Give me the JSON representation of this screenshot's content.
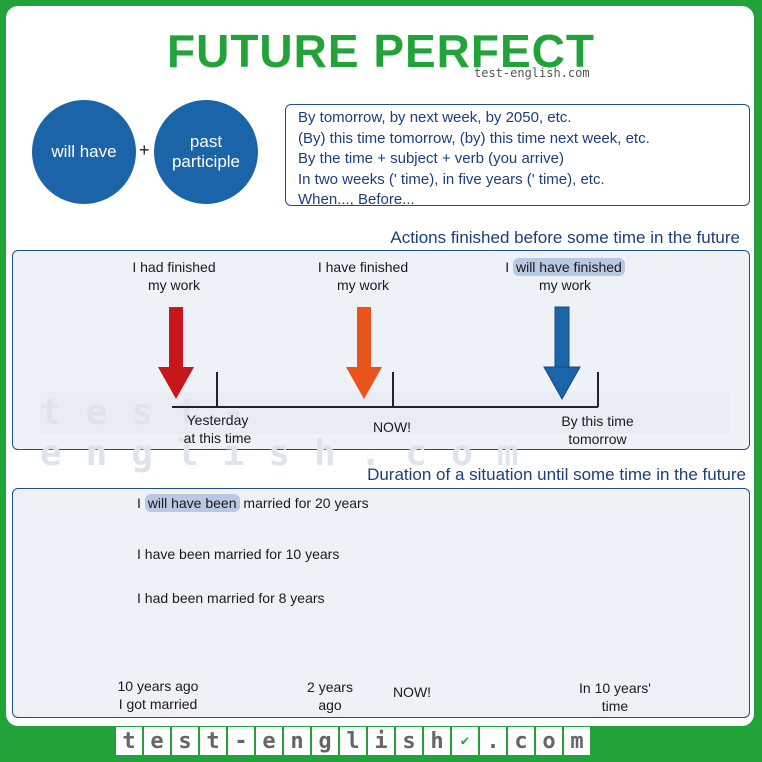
{
  "title": "FUTURE PERFECT",
  "logo": "test-english.com",
  "formula": {
    "part1": "will have",
    "plus": "+",
    "part2_line1": "past",
    "part2_line2": "participle"
  },
  "time_expressions": [
    "By tomorrow, by next week, by 2050, etc.",
    "(By) this time tomorrow, (by) this time next week, etc.",
    "By the time + subject + verb (you arrive)",
    "In two weeks (' time), in five years (' time), etc.",
    "When..., Before..."
  ],
  "section1": {
    "heading": "Actions finished before some time in the future",
    "example1_line1": "I had finished",
    "example1_line2": "my work",
    "example2_line1": "I have finished",
    "example2_line2": "my work",
    "example3_subject": "I",
    "example3_verb": "will have finished",
    "example3_line2": "my work",
    "tick1_line1": "Yesterday",
    "tick1_line2": "at this time",
    "tick2": "NOW!",
    "tick3_line1": "By this time",
    "tick3_line2": "tomorrow",
    "watermark": "test-english.com"
  },
  "section2": {
    "heading": "Duration of a situation until some time in the future",
    "ex1_subject": "I",
    "ex1_verb": "will have been",
    "ex1_rest": "married for 20 years",
    "ex2": "I have been married for 10 years",
    "ex3": "I had been married for 8 years",
    "tick1_line1": "10 years ago",
    "tick1_line2": "I got married",
    "tick2_line1": "2 years",
    "tick2_line2": "ago",
    "tick3": "NOW!",
    "tick4_line1": "In 10 years'",
    "tick4_line2": "time"
  },
  "footer_letters": [
    "t",
    "e",
    "s",
    "t",
    "-",
    "e",
    "n",
    "g",
    "l",
    "i",
    "s",
    "h",
    "✔",
    ".",
    "c",
    "o",
    "m"
  ],
  "colors": {
    "green": "#22a33a",
    "blue": "#1c64a8",
    "navy": "#1c3f7a",
    "red": "#c8161d",
    "orange": "#e8541a",
    "highlight": "#b9c9e3"
  }
}
